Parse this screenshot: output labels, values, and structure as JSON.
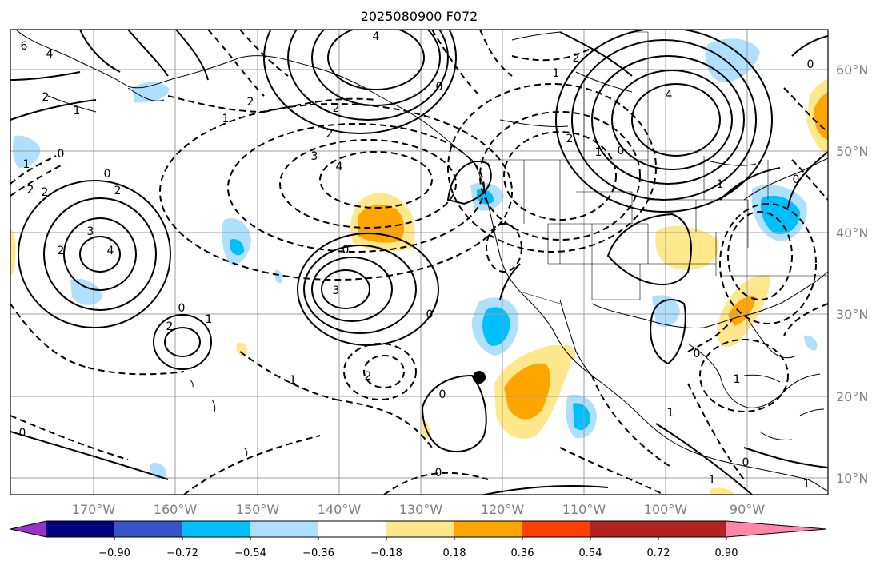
{
  "title": "2025080900 F072",
  "map": {
    "lat_labels": [
      "60°N",
      "50°N",
      "40°N",
      "30°N",
      "20°N",
      "10°N"
    ],
    "lon_labels": [
      "170°W",
      "160°W",
      "150°W",
      "140°W",
      "130°W",
      "120°W",
      "110°W",
      "100°W",
      "90°W"
    ],
    "marker": "storm-center-dot"
  },
  "colorbar": {
    "ticks": [
      "−0.90",
      "−0.72",
      "−0.54",
      "−0.36",
      "−0.18",
      "0.18",
      "0.36",
      "0.54",
      "0.72",
      "0.90"
    ],
    "colors": {
      "under": "#9932cc",
      "bins": [
        "#000080",
        "#3555c8",
        "#00bfff",
        "#b0e0ff",
        "#ffffff",
        "#ffe88c",
        "#ffa500",
        "#ff4000",
        "#b22222"
      ],
      "over": "#ff88aa"
    }
  },
  "contour_labels": {
    "values": [
      "0",
      "4",
      "2",
      "2",
      "1",
      "2",
      "1",
      "3",
      "4",
      "0",
      "2",
      "3",
      "2",
      "0",
      "2",
      "4",
      "2",
      "1",
      "0",
      "0",
      "3",
      "0",
      "0",
      "2",
      "1",
      "0",
      "0",
      "2",
      "1",
      "0",
      "1",
      "0",
      "1",
      "0",
      "0",
      "1",
      "1",
      "1",
      "6",
      "4",
      "2",
      "2",
      "2",
      "4",
      "0",
      "1",
      "1"
    ]
  }
}
